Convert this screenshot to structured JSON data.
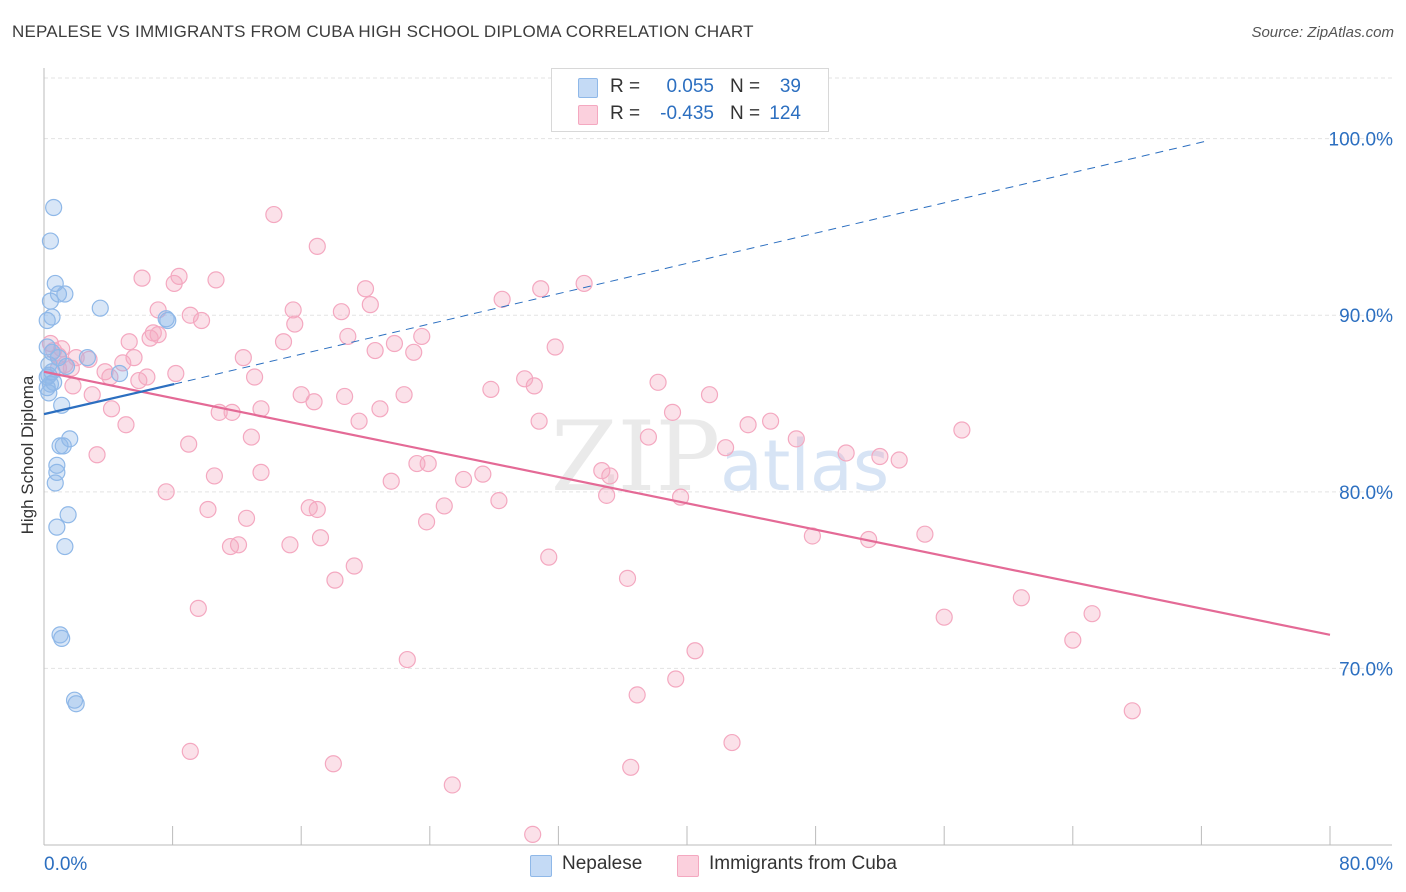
{
  "chart_data": {
    "type": "scatter",
    "title": "NEPALESE VS IMMIGRANTS FROM CUBA HIGH SCHOOL DIPLOMA CORRELATION CHART",
    "source": "Source: ZipAtlas.com",
    "xlabel": "",
    "ylabel": "High School Diploma",
    "xlim": [
      0,
      80
    ],
    "ylim": [
      60,
      104
    ],
    "x_tick_labels": [
      "0.0%",
      "80.0%"
    ],
    "y_ticks": [
      70,
      80,
      90,
      100
    ],
    "y_tick_labels": [
      "70.0%",
      "80.0%",
      "90.0%",
      "100.0%"
    ],
    "grid": true,
    "watermark": "ZIPatlas",
    "legend_position": "top-center",
    "legend": [
      {
        "name": "Nepalese",
        "r_label": "R =",
        "r_value": "0.055",
        "n_label": "N =",
        "n_value": "39"
      },
      {
        "name": "Immigrants from Cuba",
        "r_label": "R =",
        "r_value": "-0.435",
        "n_label": "N =",
        "n_value": "124"
      }
    ],
    "series": [
      {
        "name": "Nepalese",
        "color": "#8fb8e8",
        "line_color": "#2c6fc0",
        "trend_solid": {
          "x0": 0.0,
          "y0": 84.4,
          "x1": 8.1,
          "y1": 86.1
        },
        "trend_dashed": {
          "x0": 8.1,
          "y0": 86.1,
          "x1": 72.5,
          "y1": 99.9
        },
        "points": [
          [
            0.6,
            96.1
          ],
          [
            0.4,
            94.2
          ],
          [
            0.7,
            91.8
          ],
          [
            0.9,
            91.2
          ],
          [
            1.3,
            91.2
          ],
          [
            0.4,
            90.8
          ],
          [
            3.5,
            90.4
          ],
          [
            0.5,
            89.9
          ],
          [
            0.2,
            89.7
          ],
          [
            7.6,
            89.8
          ],
          [
            7.7,
            89.7
          ],
          [
            0.2,
            88.2
          ],
          [
            0.5,
            87.9
          ],
          [
            0.9,
            87.6
          ],
          [
            2.7,
            87.6
          ],
          [
            0.3,
            87.2
          ],
          [
            0.5,
            86.8
          ],
          [
            1.4,
            87.1
          ],
          [
            4.7,
            86.7
          ],
          [
            0.4,
            86.1
          ],
          [
            0.2,
            85.9
          ],
          [
            0.3,
            85.6
          ],
          [
            1.1,
            84.9
          ],
          [
            1.6,
            83.0
          ],
          [
            1.0,
            82.6
          ],
          [
            1.2,
            82.6
          ],
          [
            0.8,
            81.5
          ],
          [
            0.8,
            81.1
          ],
          [
            0.7,
            80.5
          ],
          [
            1.5,
            78.7
          ],
          [
            0.8,
            78.0
          ],
          [
            1.3,
            76.9
          ],
          [
            1.0,
            71.9
          ],
          [
            1.1,
            71.7
          ],
          [
            1.9,
            68.2
          ],
          [
            2.0,
            68.0
          ],
          [
            0.2,
            86.5
          ],
          [
            0.6,
            86.2
          ],
          [
            0.3,
            86.6
          ]
        ]
      },
      {
        "name": "Immigrants from Cuba",
        "color": "#f4a8c0",
        "line_color": "#e46a96",
        "trend": {
          "x0": 0.0,
          "y0": 86.8,
          "x1": 80.0,
          "y1": 71.9
        },
        "points": [
          [
            14.3,
            95.7
          ],
          [
            17.0,
            93.9
          ],
          [
            6.1,
            92.1
          ],
          [
            8.4,
            92.2
          ],
          [
            10.7,
            92.0
          ],
          [
            8.1,
            91.8
          ],
          [
            20.0,
            91.5
          ],
          [
            30.9,
            91.5
          ],
          [
            33.6,
            91.8
          ],
          [
            28.5,
            90.9
          ],
          [
            20.3,
            90.6
          ],
          [
            15.5,
            90.3
          ],
          [
            7.1,
            90.3
          ],
          [
            18.5,
            90.2
          ],
          [
            9.1,
            90.0
          ],
          [
            9.8,
            89.7
          ],
          [
            15.6,
            89.5
          ],
          [
            6.8,
            89.0
          ],
          [
            6.6,
            88.7
          ],
          [
            7.1,
            88.9
          ],
          [
            18.9,
            88.8
          ],
          [
            23.5,
            88.8
          ],
          [
            5.3,
            88.5
          ],
          [
            14.9,
            88.5
          ],
          [
            21.8,
            88.4
          ],
          [
            0.4,
            88.4
          ],
          [
            0.6,
            88.0
          ],
          [
            1.1,
            88.1
          ],
          [
            2.0,
            87.6
          ],
          [
            0.9,
            87.7
          ],
          [
            31.8,
            88.2
          ],
          [
            20.6,
            88.0
          ],
          [
            23.0,
            87.9
          ],
          [
            12.4,
            87.6
          ],
          [
            5.6,
            87.6
          ],
          [
            4.9,
            87.3
          ],
          [
            2.8,
            87.5
          ],
          [
            1.3,
            87.2
          ],
          [
            0.9,
            87.0
          ],
          [
            1.7,
            87.0
          ],
          [
            3.8,
            86.8
          ],
          [
            4.1,
            86.5
          ],
          [
            8.2,
            86.7
          ],
          [
            5.9,
            86.3
          ],
          [
            13.1,
            86.5
          ],
          [
            29.9,
            86.4
          ],
          [
            30.5,
            86.0
          ],
          [
            27.8,
            85.8
          ],
          [
            38.2,
            86.2
          ],
          [
            1.8,
            86.0
          ],
          [
            3.0,
            85.5
          ],
          [
            16.0,
            85.5
          ],
          [
            16.8,
            85.1
          ],
          [
            18.7,
            85.4
          ],
          [
            22.4,
            85.5
          ],
          [
            41.4,
            85.5
          ],
          [
            4.2,
            84.7
          ],
          [
            10.9,
            84.5
          ],
          [
            11.7,
            84.5
          ],
          [
            13.5,
            84.7
          ],
          [
            19.6,
            84.0
          ],
          [
            20.9,
            84.7
          ],
          [
            30.8,
            84.0
          ],
          [
            39.1,
            84.5
          ],
          [
            43.8,
            83.8
          ],
          [
            45.2,
            84.0
          ],
          [
            5.1,
            83.8
          ],
          [
            12.9,
            83.1
          ],
          [
            9.0,
            82.7
          ],
          [
            37.6,
            83.1
          ],
          [
            46.8,
            83.0
          ],
          [
            57.1,
            83.5
          ],
          [
            42.4,
            82.5
          ],
          [
            49.9,
            82.2
          ],
          [
            52.0,
            82.0
          ],
          [
            53.2,
            81.8
          ],
          [
            3.3,
            82.1
          ],
          [
            23.2,
            81.6
          ],
          [
            23.9,
            81.6
          ],
          [
            34.7,
            81.2
          ],
          [
            13.5,
            81.1
          ],
          [
            10.6,
            80.9
          ],
          [
            27.3,
            81.0
          ],
          [
            35.2,
            80.9
          ],
          [
            26.1,
            80.7
          ],
          [
            21.6,
            80.6
          ],
          [
            7.6,
            80.0
          ],
          [
            35.0,
            79.8
          ],
          [
            39.6,
            79.7
          ],
          [
            28.3,
            79.5
          ],
          [
            16.5,
            79.1
          ],
          [
            17.0,
            79.0
          ],
          [
            24.9,
            79.2
          ],
          [
            10.2,
            79.0
          ],
          [
            12.6,
            78.5
          ],
          [
            23.8,
            78.3
          ],
          [
            47.8,
            77.5
          ],
          [
            51.3,
            77.3
          ],
          [
            54.8,
            77.6
          ],
          [
            17.2,
            77.4
          ],
          [
            12.1,
            77.0
          ],
          [
            11.6,
            76.9
          ],
          [
            15.3,
            77.0
          ],
          [
            31.4,
            76.3
          ],
          [
            19.3,
            75.8
          ],
          [
            18.1,
            75.0
          ],
          [
            36.3,
            75.1
          ],
          [
            60.8,
            74.0
          ],
          [
            9.6,
            73.4
          ],
          [
            65.2,
            73.1
          ],
          [
            56.0,
            72.9
          ],
          [
            64.0,
            71.6
          ],
          [
            40.5,
            71.0
          ],
          [
            22.6,
            70.5
          ],
          [
            39.3,
            69.4
          ],
          [
            36.9,
            68.5
          ],
          [
            67.7,
            67.6
          ],
          [
            42.8,
            65.8
          ],
          [
            9.1,
            65.3
          ],
          [
            18.0,
            64.6
          ],
          [
            36.5,
            64.4
          ],
          [
            25.4,
            63.4
          ],
          [
            30.4,
            60.6
          ],
          [
            6.4,
            86.5
          ]
        ]
      }
    ]
  }
}
